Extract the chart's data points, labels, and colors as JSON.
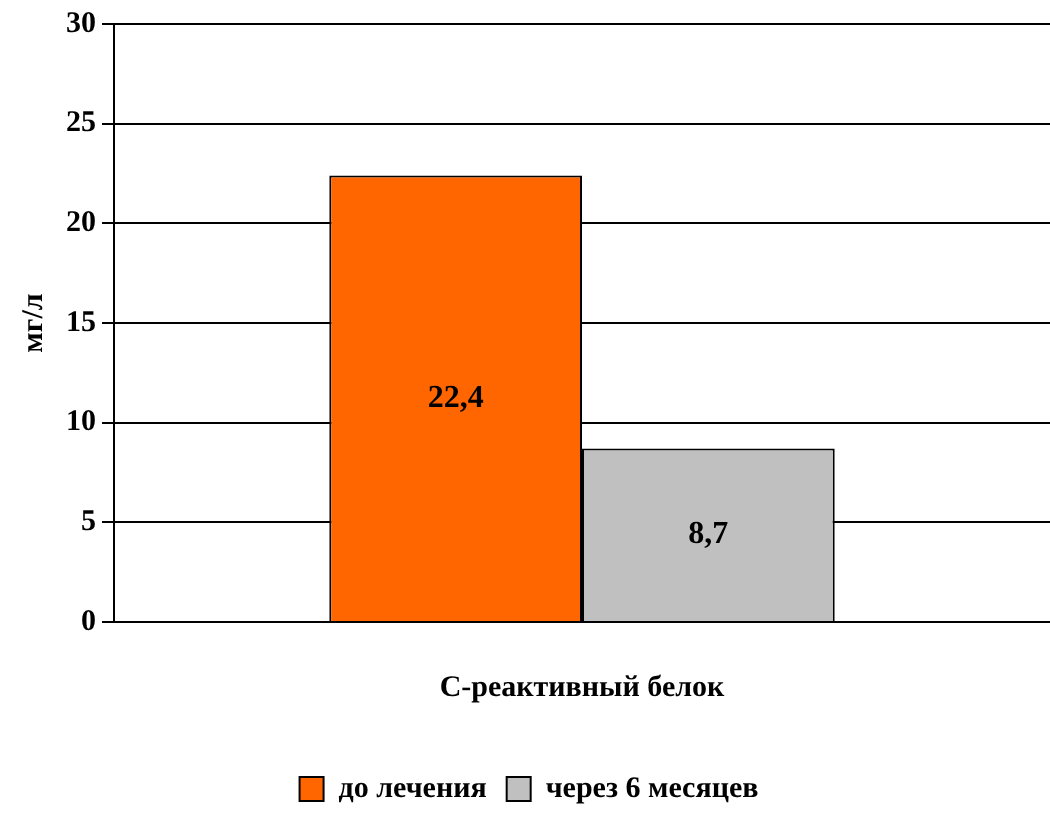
{
  "chart_data": {
    "type": "bar",
    "ylabel": "мг/л",
    "categories": [
      "С-реактивный белок"
    ],
    "series": [
      {
        "name": "до лечения",
        "color": "#ff6600",
        "values": [
          22.4
        ],
        "value_labels": [
          "22,4"
        ]
      },
      {
        "name": "через 6 месяцев",
        "color": "#c0c0c0",
        "values": [
          8.7
        ],
        "value_labels": [
          "8,7"
        ]
      }
    ],
    "ylim": [
      0,
      30
    ],
    "yticks": [
      0,
      5,
      10,
      15,
      20,
      25,
      30
    ],
    "grid": "y",
    "legend": "bottom"
  }
}
